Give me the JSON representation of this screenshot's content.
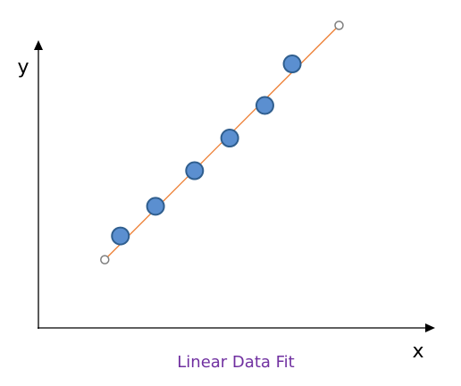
{
  "chart_data": {
    "type": "scatter",
    "title": "Linear Data Fit",
    "xlabel": "x",
    "ylabel": "y",
    "grid": false,
    "xlim": [
      0,
      10
    ],
    "ylim": [
      0,
      10
    ],
    "series": [
      {
        "points": [
          {
            "x": 2.1,
            "y": 3.1
          },
          {
            "x": 3.0,
            "y": 4.1
          },
          {
            "x": 4.0,
            "y": 5.3
          },
          {
            "x": 4.9,
            "y": 6.4
          },
          {
            "x": 5.8,
            "y": 7.5
          },
          {
            "x": 6.5,
            "y": 8.9
          }
        ]
      }
    ],
    "fit_line": {
      "start": {
        "x": 1.7,
        "y": 2.3
      },
      "end": {
        "x": 7.7,
        "y": 10.2
      }
    },
    "colors": {
      "point_fill": "#5B8FD0",
      "point_stroke": "#2F5E8E",
      "fit_line": "#ED7D31",
      "endpoint_stroke": "#7F7F7F",
      "title": "#7030A0"
    }
  }
}
